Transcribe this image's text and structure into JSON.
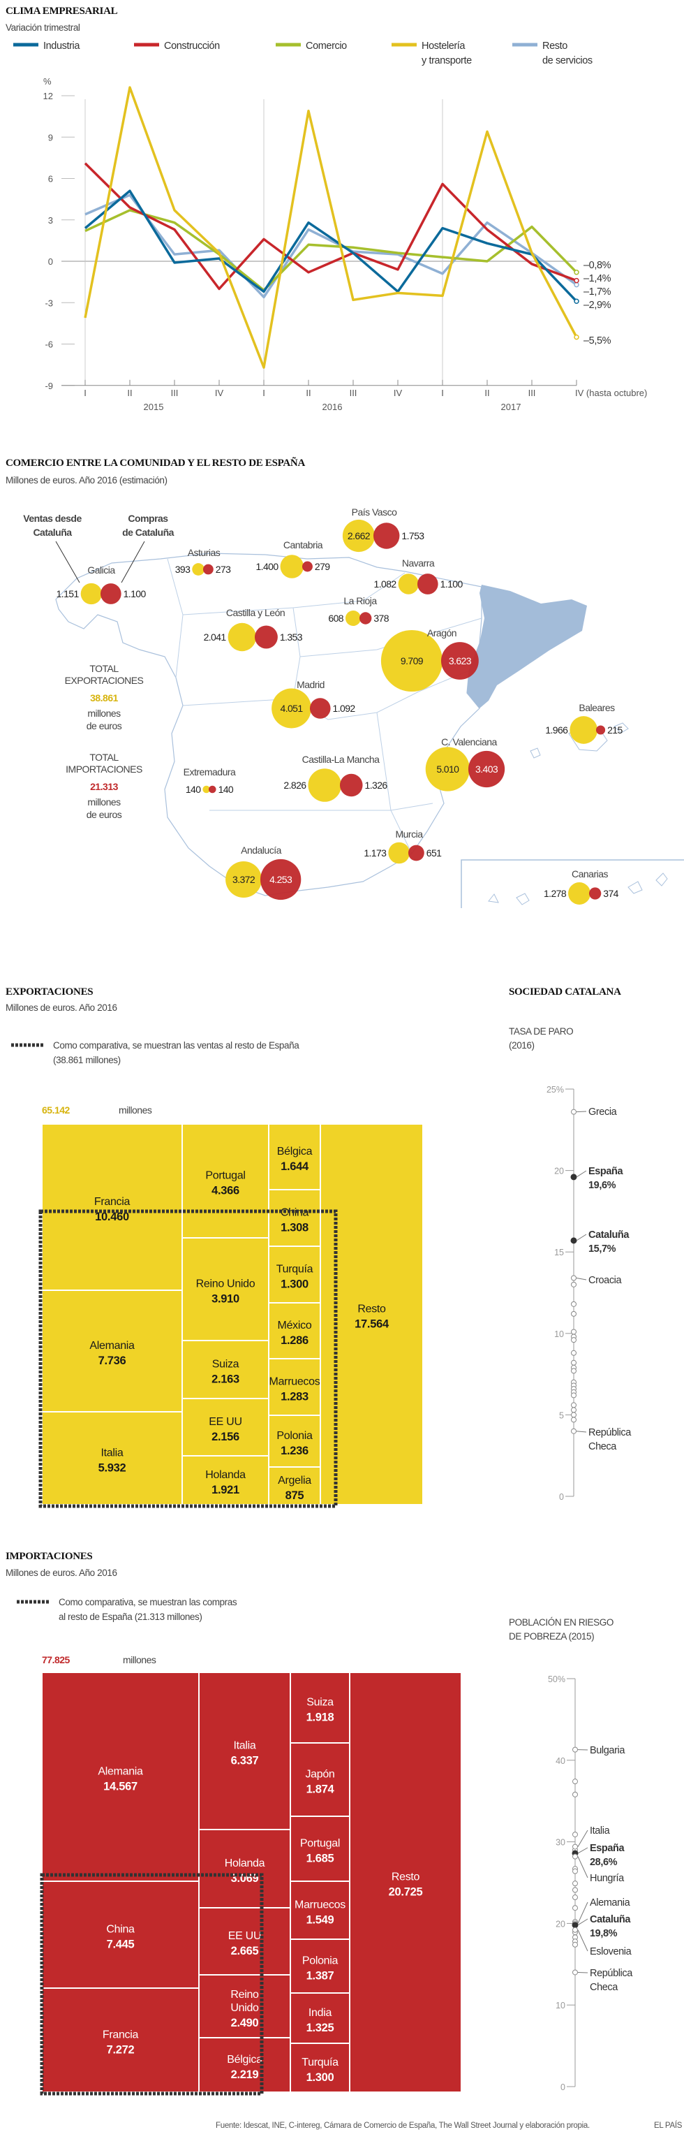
{
  "chart_data": [
    {
      "type": "line",
      "title": "CLIMA EMPRESARIAL",
      "subtitle": "Variación trimestral",
      "ylabel": "%",
      "ylim": [
        -9,
        12
      ],
      "y_ticks": [
        12,
        9,
        6,
        3,
        0,
        -3,
        -6,
        -9
      ],
      "x": [
        "I",
        "II",
        "III",
        "IV",
        "I",
        "II",
        "III",
        "IV",
        "I",
        "II",
        "III",
        "IV (hasta octubre)"
      ],
      "years": [
        "2015",
        "2016",
        "2017"
      ],
      "legend": "top",
      "series": [
        {
          "name": "Industria",
          "color": "#0b6a9b",
          "values": [
            2.4,
            5.1,
            -0.1,
            0.2,
            -2.2,
            2.8,
            0.6,
            -2.2,
            2.4,
            1.3,
            0.5,
            -2.9
          ],
          "end_label": "–2,9%"
        },
        {
          "name": "Construcción",
          "color": "#c8262b",
          "values": [
            7.1,
            3.9,
            2.3,
            -2.0,
            1.6,
            -0.8,
            0.6,
            -0.6,
            5.6,
            2.3,
            -0.2,
            -1.4
          ],
          "end_label": "–1,4%"
        },
        {
          "name": "Comercio",
          "color": "#a6bf2d",
          "values": [
            2.2,
            3.7,
            2.8,
            0.5,
            -2.1,
            1.2,
            1.0,
            0.6,
            0.3,
            0.0,
            2.5,
            -0.8
          ],
          "end_label": "–0,8%"
        },
        {
          "name": "Hostelería\ny transporte",
          "color": "#e3c11f",
          "values": [
            -4.1,
            12.6,
            3.7,
            0.6,
            -7.7,
            10.9,
            -2.8,
            -2.3,
            -2.5,
            9.4,
            0.6,
            -5.5
          ],
          "end_label": "–5,5%"
        },
        {
          "name": "Resto\nde servicios",
          "color": "#8fb0d4",
          "values": [
            3.4,
            4.8,
            0.5,
            0.8,
            -2.6,
            2.3,
            0.7,
            0.5,
            -0.9,
            2.8,
            0.6,
            -1.7
          ],
          "end_label": "–1,7%"
        }
      ]
    },
    {
      "type": "bubble-map",
      "title": "COMERCIO ENTRE LA COMUNIDAD Y EL RESTO DE ESPAÑA",
      "subtitle": "Millones de euros. Año 2016 (estimación)",
      "key_ventas": "Ventas desde\nCataluña",
      "key_compras": "Compras\nde Cataluña",
      "color_ventas": "#f0d327",
      "color_compras": "#c0292b",
      "color_cataluna": "#a3bcd9",
      "total_exports": {
        "label": "TOTAL\nEXPORTACIONES",
        "value": "38.861",
        "unit": "millones\nde euros"
      },
      "total_imports": {
        "label": "TOTAL\nIMPORTACIONES",
        "value": "21.313",
        "unit": "millones\nde euros"
      },
      "regions": [
        {
          "name": "Galicia",
          "ventas": 1151,
          "compras": 1100
        },
        {
          "name": "Asturias",
          "ventas": 393,
          "compras": 273
        },
        {
          "name": "Cantabria",
          "ventas": 1400,
          "compras": 279
        },
        {
          "name": "País Vasco",
          "ventas": 2662,
          "compras": 1753
        },
        {
          "name": "Navarra",
          "ventas": 1082,
          "compras": 1100
        },
        {
          "name": "La Rioja",
          "ventas": 608,
          "compras": 378
        },
        {
          "name": "Castilla y León",
          "ventas": 2041,
          "compras": 1353
        },
        {
          "name": "Aragón",
          "ventas": 9709,
          "compras": 3623
        },
        {
          "name": "Madrid",
          "ventas": 4051,
          "compras": 1092
        },
        {
          "name": "Extremadura",
          "ventas": 140,
          "compras": 140
        },
        {
          "name": "Castilla-La Mancha",
          "ventas": 2826,
          "compras": 1326
        },
        {
          "name": "C. Valenciana",
          "ventas": 5010,
          "compras": 3403
        },
        {
          "name": "Baleares",
          "ventas": 1966,
          "compras": 215
        },
        {
          "name": "Murcia",
          "ventas": 1173,
          "compras": 651
        },
        {
          "name": "Andalucía",
          "ventas": 3372,
          "compras": 4253
        },
        {
          "name": "Canarias",
          "ventas": 1278,
          "compras": 374
        }
      ]
    },
    {
      "type": "treemap",
      "title": "EXPORTACIONES",
      "subtitle": "Millones de euros. Año 2016",
      "note": "Como comparativa, se muestran las ventas al resto de España\n(38.861 millones)",
      "total": "65.142",
      "total_unit": "millones",
      "color": "#f0d327",
      "items": [
        {
          "name": "Francia",
          "value": 10460
        },
        {
          "name": "Alemania",
          "value": 7736
        },
        {
          "name": "Italia",
          "value": 5932
        },
        {
          "name": "Portugal",
          "value": 4366
        },
        {
          "name": "Reino Unido",
          "value": 3910
        },
        {
          "name": "Suiza",
          "value": 2163
        },
        {
          "name": "EE UU",
          "value": 2156
        },
        {
          "name": "Holanda",
          "value": 1921
        },
        {
          "name": "Bélgica",
          "value": 1644
        },
        {
          "name": "China",
          "value": 1308
        },
        {
          "name": "Turquía",
          "value": 1300
        },
        {
          "name": "México",
          "value": 1286
        },
        {
          "name": "Marruecos",
          "value": 1283
        },
        {
          "name": "Polonia",
          "value": 1236
        },
        {
          "name": "Argelia",
          "value": 875
        },
        {
          "name": "Resto",
          "value": 17564
        }
      ]
    },
    {
      "type": "treemap",
      "title": "IMPORTACIONES",
      "subtitle": "Millones de euros. Año 2016",
      "note": "Como comparativa, se muestran las compras\nal resto de España (21.313 millones)",
      "total": "77.825",
      "total_unit": "millones",
      "color": "#c0292b",
      "items": [
        {
          "name": "Alemania",
          "value": 14567
        },
        {
          "name": "China",
          "value": 7445
        },
        {
          "name": "Francia",
          "value": 7272
        },
        {
          "name": "Italia",
          "value": 6337
        },
        {
          "name": "Holanda",
          "value": 3069
        },
        {
          "name": "EE UU",
          "value": 2665
        },
        {
          "name": "Reino\nUnido",
          "value": 2490
        },
        {
          "name": "Bélgica",
          "value": 2219
        },
        {
          "name": "Suiza",
          "value": 1918
        },
        {
          "name": "Japón",
          "value": 1874
        },
        {
          "name": "Portugal",
          "value": 1685
        },
        {
          "name": "Marruecos",
          "value": 1549
        },
        {
          "name": "Polonia",
          "value": 1387
        },
        {
          "name": "India",
          "value": 1325
        },
        {
          "name": "Turquía",
          "value": 1300
        },
        {
          "name": "Resto",
          "value": 20725
        }
      ]
    },
    {
      "type": "scatter",
      "section_title": "SOCIEDAD CATALANA",
      "title": "TASA DE PARO\n(2016)",
      "ylim": [
        0,
        25
      ],
      "y_ticks": [
        "0",
        "5",
        "10",
        "15",
        "20",
        "25%"
      ],
      "labeled": [
        {
          "label": "Grecia",
          "value": 23.6
        },
        {
          "label": "España",
          "value": 19.6,
          "value_label": "19,6%",
          "highlight": true
        },
        {
          "label": "Cataluña",
          "value": 15.7,
          "value_label": "15,7%",
          "highlight": true
        },
        {
          "label": "Croacia",
          "value": 13.4
        },
        {
          "label": "República\nCheca",
          "value": 4.0
        }
      ],
      "others": [
        13.0,
        11.8,
        11.2,
        10.1,
        9.8,
        9.6,
        8.8,
        8.2,
        7.9,
        7.7,
        7.0,
        6.8,
        6.6,
        6.4,
        6.2,
        5.6,
        5.3,
        5.0,
        4.7
      ]
    },
    {
      "type": "scatter",
      "title": "POBLACIÓN EN RIESGO\nDE POBREZA (2015)",
      "ylim": [
        0,
        50
      ],
      "y_ticks": [
        "0",
        "10",
        "20",
        "30",
        "40",
        "50%"
      ],
      "labeled": [
        {
          "label": "Bulgaria",
          "value": 41.3
        },
        {
          "label": "Italia",
          "value": 29.4
        },
        {
          "label": "España",
          "value": 28.6,
          "value_label": "28,6%",
          "highlight": true
        },
        {
          "label": "Hungría",
          "value": 28.2
        },
        {
          "label": "Alemania",
          "value": 20.0
        },
        {
          "label": "Cataluña",
          "value": 19.8,
          "value_label": "19,8%",
          "highlight": true
        },
        {
          "label": "Eslovenia",
          "value": 19.2
        },
        {
          "label": "República\nCheca",
          "value": 14.0
        }
      ],
      "others": [
        37.4,
        35.8,
        30.9,
        29.0,
        26.7,
        26.4,
        24.9,
        24.1,
        23.2,
        21.9,
        20.2,
        18.9,
        18.3,
        17.8,
        17.4
      ]
    }
  ],
  "footer": {
    "source": "Fuente: Idescat, INE, C-intereg, Cámara de Comercio de España, The Wall Street Journal y elaboración propia.",
    "brand": "EL PAÍS"
  }
}
